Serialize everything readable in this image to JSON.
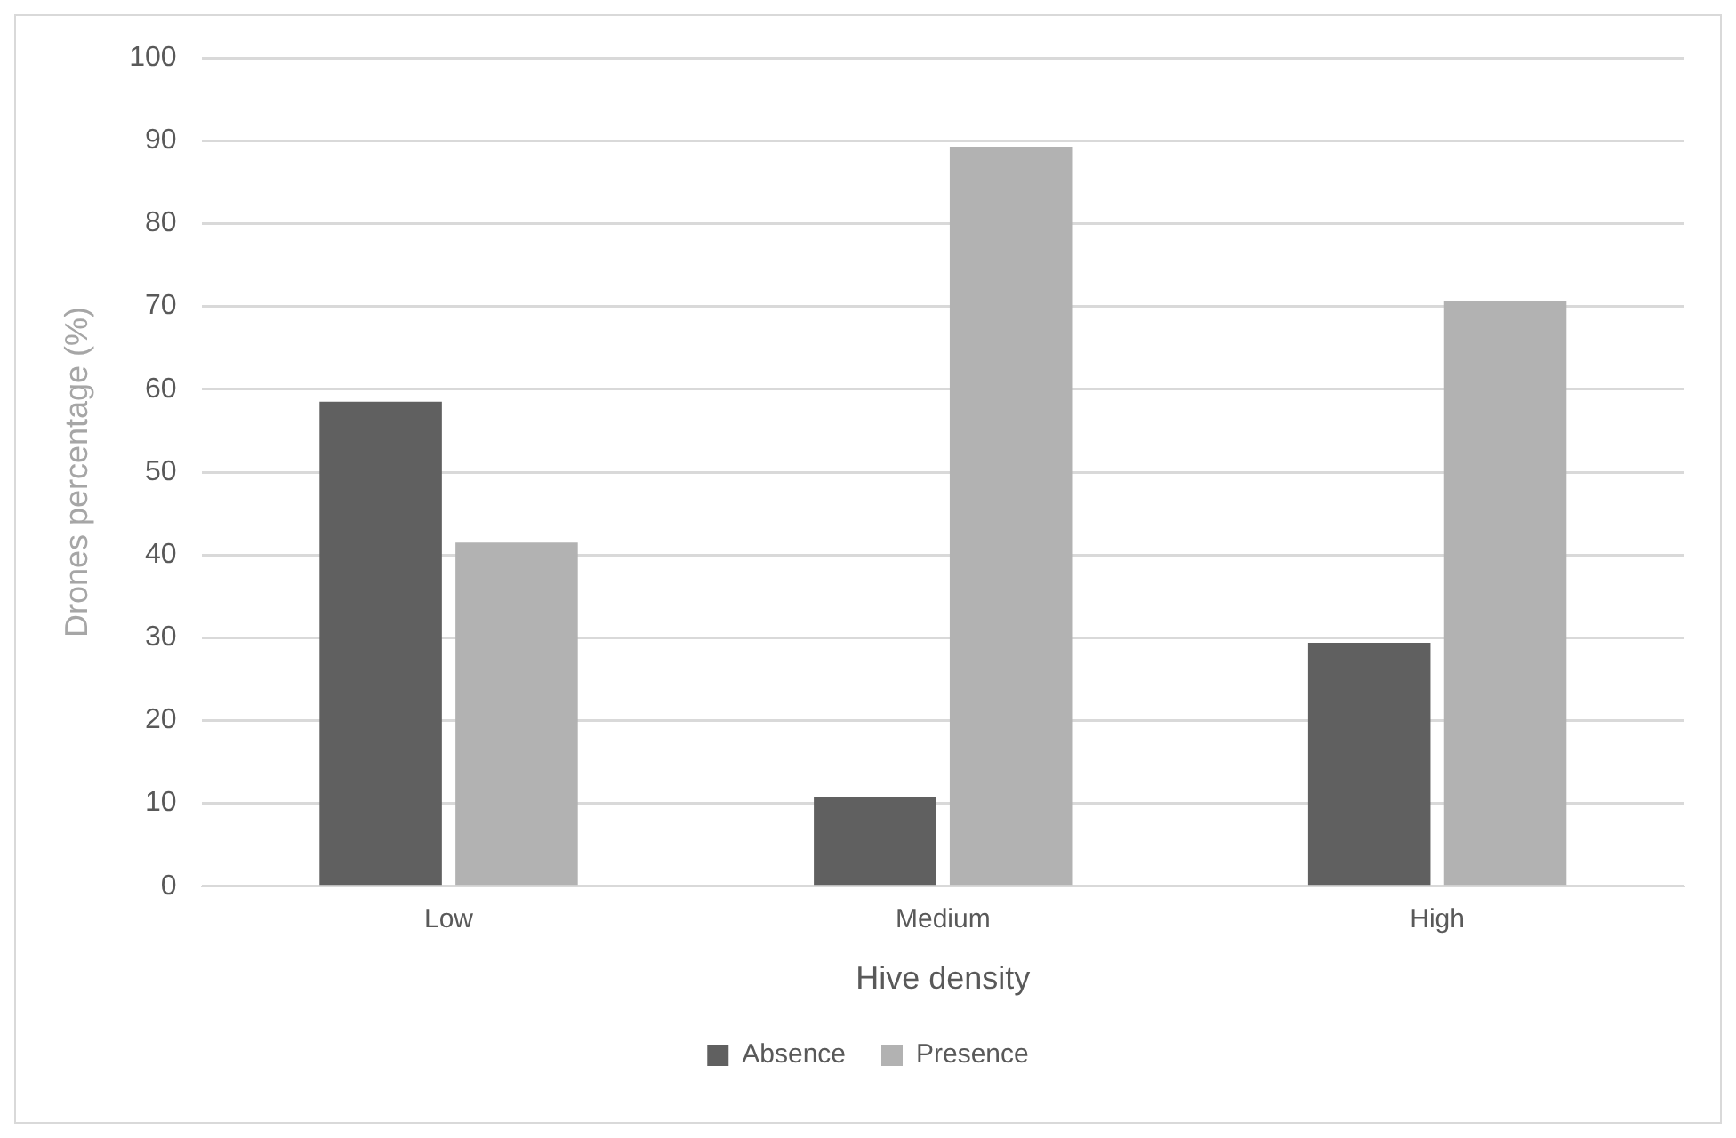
{
  "chart_data": {
    "type": "bar",
    "xlabel": "Hive density",
    "ylabel": "Drones percentage (%)",
    "categories": [
      "Low",
      "Medium",
      "High"
    ],
    "series": [
      {
        "name": "Absence",
        "color": "#606060",
        "values": [
          58.5,
          10.7,
          29.4
        ]
      },
      {
        "name": "Presence",
        "color": "#b2b2b2",
        "values": [
          41.5,
          89.3,
          70.6
        ]
      }
    ],
    "ylim": [
      0,
      100
    ],
    "yticks": [
      0,
      10,
      20,
      30,
      40,
      50,
      60,
      70,
      80,
      90,
      100
    ],
    "grid": "y",
    "legend": "bottom"
  }
}
